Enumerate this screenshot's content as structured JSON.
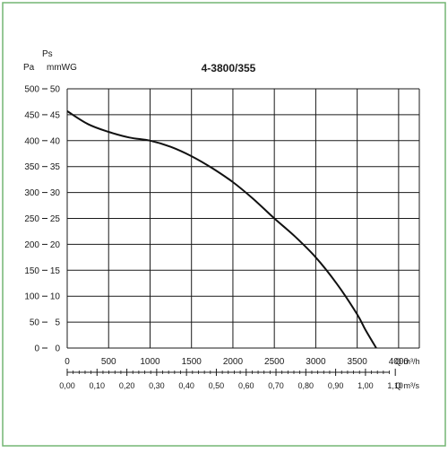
{
  "colors": {
    "frame_border": "#74b574",
    "grid": "#1a1a1a",
    "curve": "#111111",
    "text": "#1a1a1a"
  },
  "chart_data": {
    "type": "line",
    "title": "4-3800/355",
    "y_label_top": "Ps",
    "y_label_pa": "Pa",
    "y_label_mmwg": "mmWG",
    "x_label_m3h": "Q m³/h",
    "x_label_m3s": "Q m³/s",
    "grid": true,
    "xlim": [
      0,
      4250
    ],
    "ylim": [
      0,
      500
    ],
    "x_ticks_m3h": [
      "0",
      "500",
      "1000",
      "1500",
      "2000",
      "2500",
      "3000",
      "3500",
      "4000"
    ],
    "x_ticks_m3s": [
      "0,00",
      "0,10",
      "0,20",
      "0,30",
      "0,40",
      "0,50",
      "0,60",
      "0,70",
      "0,80",
      "0,90",
      "1,00",
      "1,10"
    ],
    "y_ticks_pa": [
      "0",
      "50",
      "100",
      "150",
      "200",
      "250",
      "300",
      "350",
      "400",
      "450",
      "500"
    ],
    "y_ticks_mmwg": [
      "0",
      "5",
      "10",
      "15",
      "20",
      "25",
      "30",
      "35",
      "40",
      "45",
      "50"
    ],
    "series": [
      {
        "x": [
          0,
          250,
          500,
          750,
          1000,
          1250,
          1500,
          1750,
          2000,
          2250,
          2500,
          2750,
          3000,
          3250,
          3500,
          3600,
          3730
        ],
        "y": [
          457,
          432,
          417,
          406,
          400,
          388,
          370,
          347,
          320,
          287,
          250,
          215,
          175,
          125,
          65,
          35,
          0
        ]
      }
    ]
  }
}
